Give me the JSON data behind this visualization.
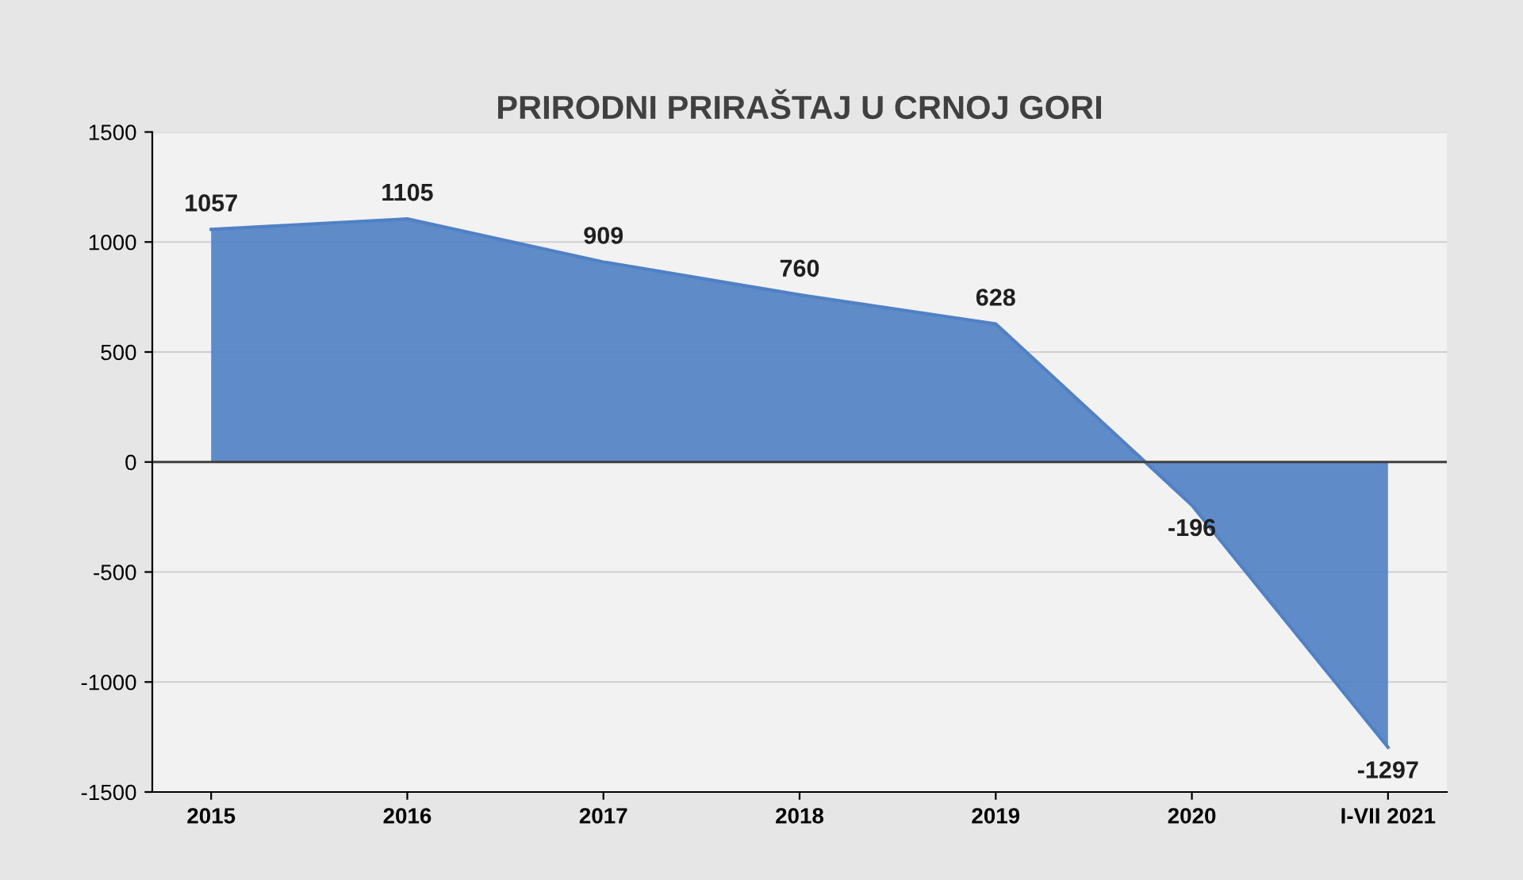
{
  "chart_data": {
    "type": "area",
    "title": "PRIRODNI PRIRAŠTAJ U CRNOJ GORI",
    "categories": [
      "2015",
      "2016",
      "2017",
      "2018",
      "2019",
      "2020",
      "I-VII 2021"
    ],
    "values": [
      1057,
      1105,
      909,
      760,
      628,
      -196,
      -1297
    ],
    "color": "#4f81c4",
    "ylim": [
      -1500,
      1500
    ],
    "yticks": [
      -1500,
      -1000,
      -500,
      0,
      500,
      1000,
      1500
    ],
    "grid": "y",
    "data_labels": true
  }
}
